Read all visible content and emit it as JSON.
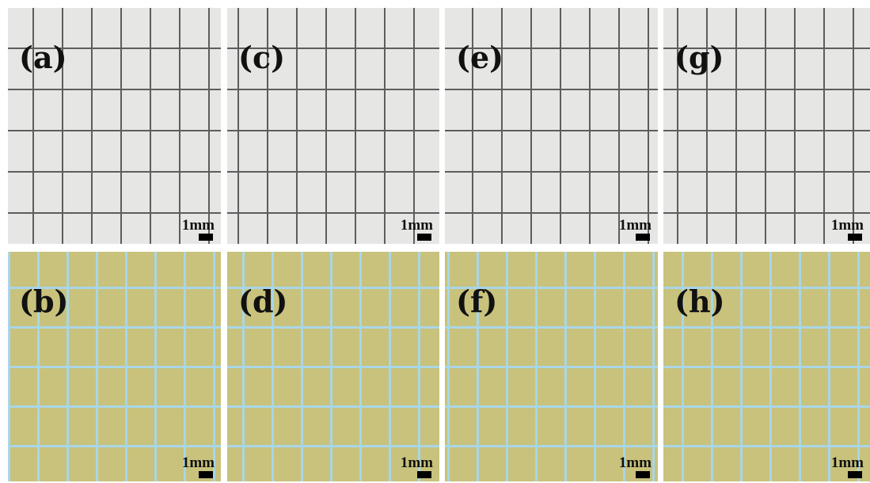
{
  "top_row": [
    {
      "label": "(a)",
      "scale": "1mm"
    },
    {
      "label": "(c)",
      "scale": "1mm"
    },
    {
      "label": "(e)",
      "scale": "1mm"
    },
    {
      "label": "(g)",
      "scale": "1mm"
    }
  ],
  "bottom_row": [
    {
      "label": "(b)",
      "scale": "1mm"
    },
    {
      "label": "(d)",
      "scale": "1mm"
    },
    {
      "label": "(f)",
      "scale": "1mm"
    },
    {
      "label": "(h)",
      "scale": "1mm"
    }
  ]
}
